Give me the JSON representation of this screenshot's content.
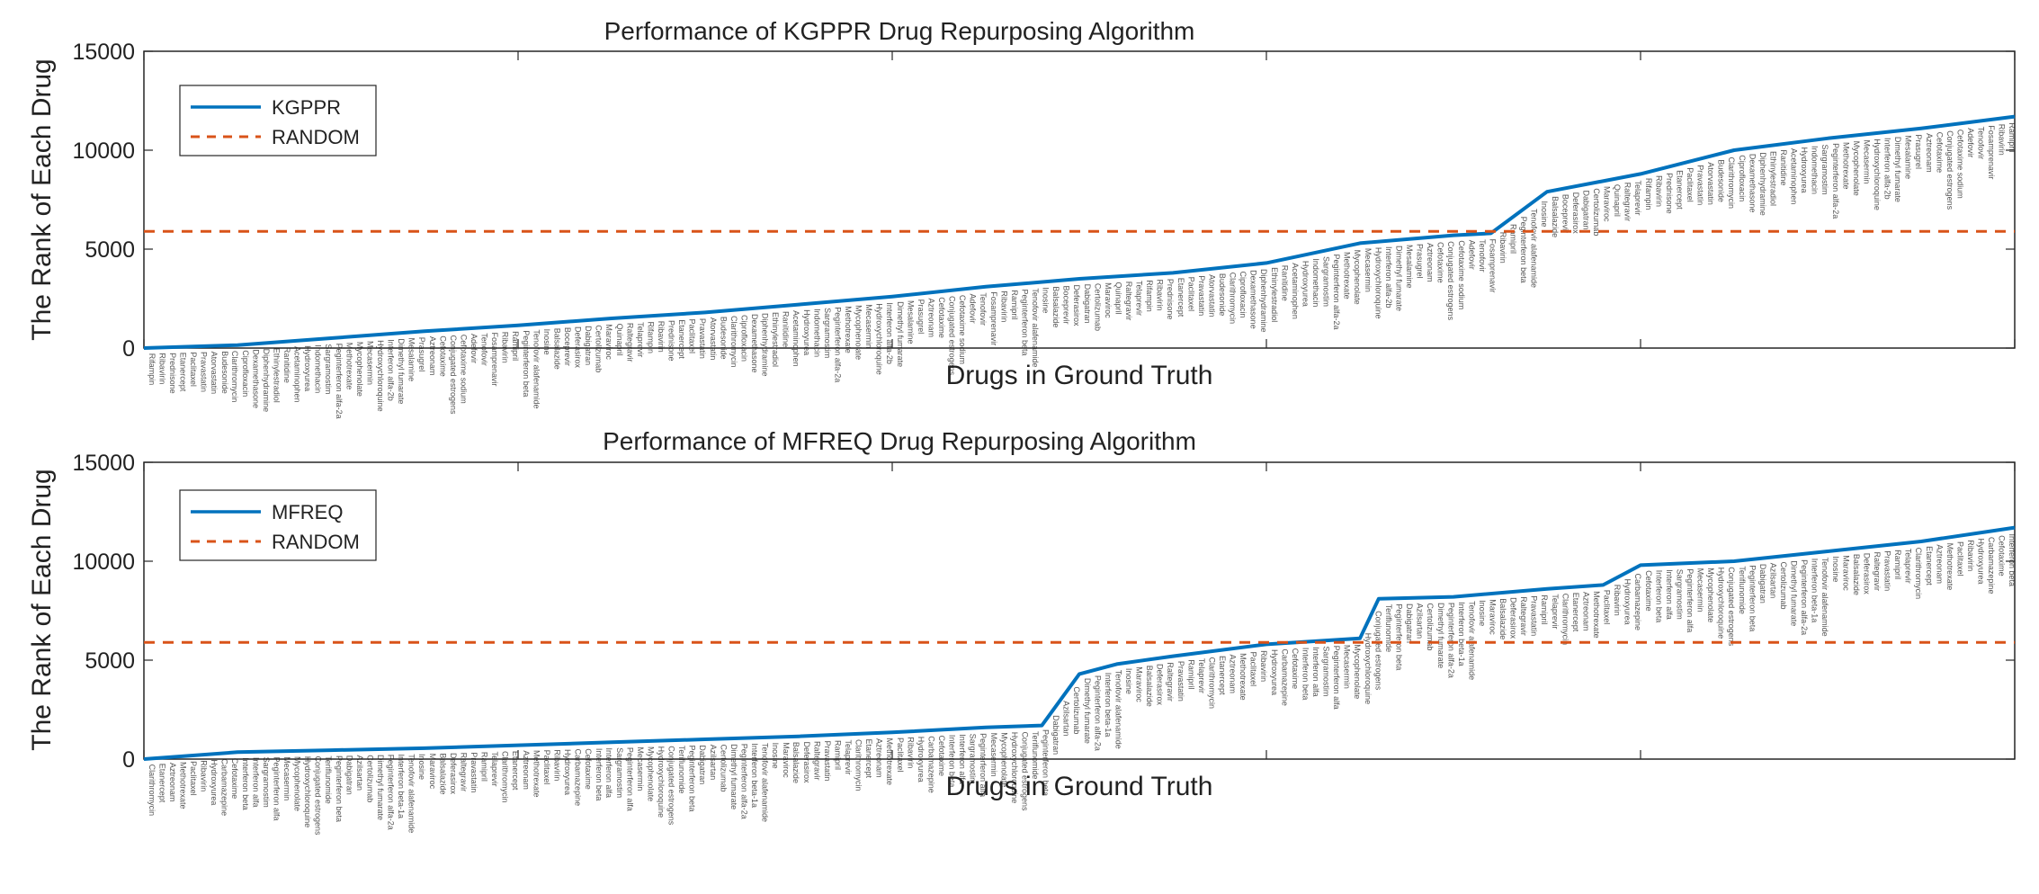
{
  "chart_data": [
    {
      "type": "line",
      "title": "Performance of KGPPR Drug Repurposing Algorithm",
      "xlabel": "Drugs in Ground Truth",
      "ylabel": "The Rank of Each Drug",
      "ylim": [
        0,
        15000
      ],
      "yticks": [
        0,
        5000,
        10000,
        15000
      ],
      "legend_position": "top-left",
      "grid": false,
      "series": [
        {
          "name": "KGPPR",
          "color": "#0072BD",
          "style": "solid",
          "x": [
            0,
            50,
            100,
            150,
            200,
            250,
            300,
            350,
            400,
            450,
            500,
            550,
            600,
            650,
            700,
            720,
            750,
            800,
            850,
            900,
            950,
            1000
          ],
          "y": [
            0,
            150,
            500,
            850,
            1150,
            1500,
            1800,
            2200,
            2600,
            3100,
            3500,
            3800,
            4300,
            5300,
            5700,
            5800,
            7900,
            8800,
            10000,
            10600,
            11100,
            11700
          ]
        },
        {
          "name": "RANDOM",
          "color": "#D95319",
          "style": "dashed",
          "x": [
            0,
            1000
          ],
          "y": [
            5900,
            5900
          ]
        }
      ],
      "drug_labels": [
        "Rifampin",
        "Ribavirin",
        "Prednisone",
        "Etanercept",
        "Paclitaxel",
        "Pravastatin",
        "Atorvastatin",
        "Budesonide",
        "Clarithromycin",
        "Ciprofloxacin",
        "Dexamethasone",
        "Diphenhydramine",
        "Ethinylestradiol",
        "Ranitidine",
        "Acetaminophen",
        "Hydroxyurea",
        "Indomethacin",
        "Sargramostim",
        "Peginterferon alfa-2a",
        "Methotrexate",
        "Mycophenolate",
        "Mecasermin",
        "Hydroxychloroquine",
        "Interferon alfa-2b",
        "Dimethyl fumarate",
        "Mesalamine",
        "Prasugrel",
        "Aztreonam",
        "Cefotaxime",
        "Conjugated estrogens",
        "Cefotaxime sodium",
        "Adefovir",
        "Tenofovir",
        "Fosamprenavir",
        "Ribavirin",
        "Ramipril",
        "Peginterferon beta",
        "Tenofovir alafenamide",
        "Inosine",
        "Balsalazide",
        "Boceprevir",
        "Deferasirox",
        "Dabigatran",
        "Certolizumab",
        "Maraviroc",
        "Quinapril",
        "Raltegravir",
        "Telaprevir"
      ]
    },
    {
      "type": "line",
      "title": "Performance of MFREQ Drug Repurposing Algorithm",
      "xlabel": "Drugs in Ground Truth",
      "ylabel": "The Rank of Each Drug",
      "ylim": [
        0,
        15000
      ],
      "yticks": [
        0,
        5000,
        10000,
        15000
      ],
      "legend_position": "top-left",
      "grid": false,
      "series": [
        {
          "name": "MFREQ",
          "color": "#0072BD",
          "style": "solid",
          "x": [
            0,
            50,
            100,
            150,
            200,
            250,
            300,
            350,
            400,
            450,
            480,
            500,
            520,
            550,
            600,
            650,
            660,
            700,
            750,
            780,
            800,
            850,
            900,
            950,
            1000
          ],
          "y": [
            0,
            350,
            450,
            550,
            700,
            850,
            1000,
            1150,
            1350,
            1600,
            1700,
            4300,
            4800,
            5200,
            5800,
            6100,
            8100,
            8200,
            8600,
            8800,
            9800,
            10000,
            10500,
            11000,
            11700
          ]
        },
        {
          "name": "RANDOM",
          "color": "#D95319",
          "style": "dashed",
          "x": [
            0,
            1000
          ],
          "y": [
            5900,
            5900
          ]
        }
      ],
      "drug_labels": [
        "Clarithromycin",
        "Etanercept",
        "Aztreonam",
        "Methotrexate",
        "Paclitaxel",
        "Ribavirin",
        "Hydroxyurea",
        "Carbamazepine",
        "Cefotaxime",
        "Interferon beta",
        "Interferon alfa",
        "Sargramostim",
        "Peginterferon alfa",
        "Mecasermin",
        "Mycophenolate",
        "Hydroxychloroquine",
        "Conjugated estrogens",
        "Teriflunomide",
        "Peginterferon beta",
        "Dabigatran",
        "Azilsartan",
        "Certolizumab",
        "Dimethyl fumarate",
        "Peginterferon alfa-2a",
        "Interferon beta-1a",
        "Tenofovir alafenamide",
        "Inosine",
        "Maraviroc",
        "Balsalazide",
        "Deferasirox",
        "Raltegravir",
        "Pravastatin",
        "Ramipril",
        "Telaprevir"
      ]
    }
  ]
}
